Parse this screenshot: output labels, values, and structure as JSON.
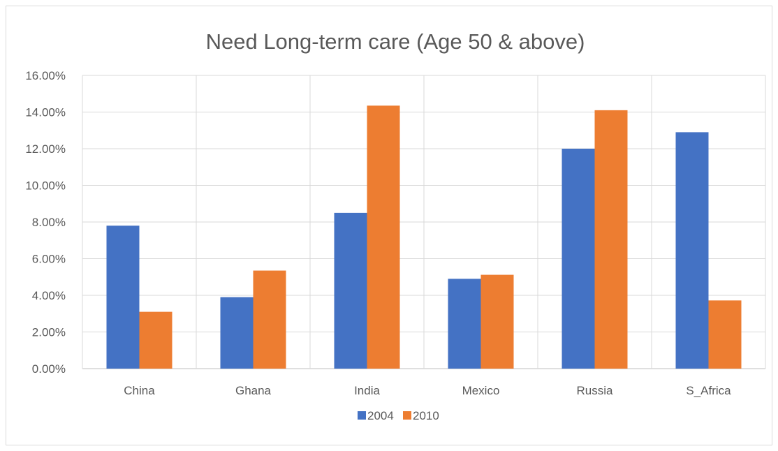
{
  "chart_data": {
    "type": "bar",
    "title": "Need Long-term care (Age 50 & above)",
    "xlabel": "",
    "ylabel": "",
    "categories": [
      "China",
      "Ghana",
      "India",
      "Mexico",
      "Russia",
      "S_Africa"
    ],
    "series": [
      {
        "name": "2004",
        "color": "#4472C4",
        "values": [
          0.078,
          0.039,
          0.085,
          0.049,
          0.12,
          0.129
        ]
      },
      {
        "name": "2010",
        "color": "#ED7D31",
        "values": [
          0.031,
          0.0535,
          0.1435,
          0.0512,
          0.141,
          0.0372
        ]
      }
    ],
    "ylim": [
      0,
      0.16
    ],
    "yticks": [
      0,
      0.02,
      0.04,
      0.06,
      0.08,
      0.1,
      0.12,
      0.14,
      0.16
    ],
    "ytick_labels": [
      "0.00%",
      "2.00%",
      "4.00%",
      "6.00%",
      "8.00%",
      "10.00%",
      "12.00%",
      "14.00%",
      "16.00%"
    ],
    "grid": true,
    "legend_position": "bottom"
  }
}
